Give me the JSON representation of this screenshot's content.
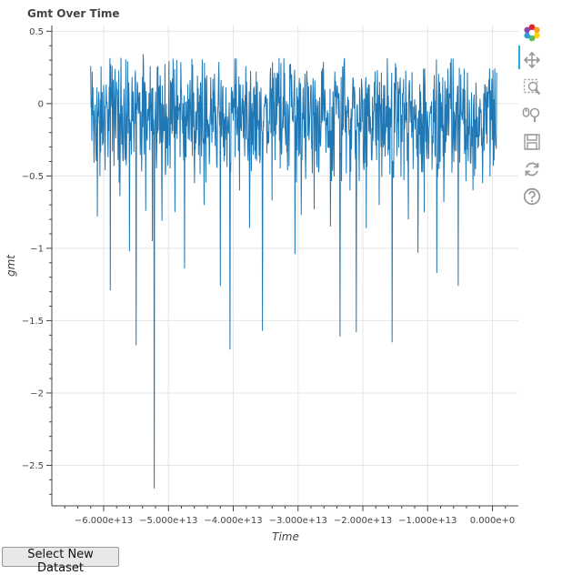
{
  "chart_data": {
    "type": "line",
    "title": "Gmt Over Time",
    "xlabel": "Time",
    "ylabel": "gmt",
    "xlim": [
      -68000000000000.0,
      4000000000000.0
    ],
    "ylim": [
      -2.78,
      0.54
    ],
    "x_ticks": [
      -60000000000000.0,
      -50000000000000.0,
      -40000000000000.0,
      -30000000000000.0,
      -20000000000000.0,
      -10000000000000.0,
      0
    ],
    "x_tick_labels": [
      "−6.000e+13",
      "−5.000e+13",
      "−4.000e+13",
      "−3.000e+13",
      "−2.000e+13",
      "−1.000e+13",
      "0.000e+0"
    ],
    "y_ticks": [
      0.5,
      0,
      -0.5,
      -1,
      -1.5,
      -2,
      -2.5
    ],
    "y_tick_labels": [
      "0.5",
      "0",
      "−0.5",
      "−1",
      "−1.5",
      "−2",
      "−2.5"
    ],
    "grid": true,
    "color": "#1f77b4",
    "series": [
      {
        "x_start": -62000000000000.0,
        "x_end": 650000000000.0,
        "baseline": -0.1,
        "spikes": [
          {
            "x": -61000000000000.0,
            "y": -0.78
          },
          {
            "x": -59000000000000.0,
            "y": -1.29
          },
          {
            "x": -57500000000000.0,
            "y": -0.64
          },
          {
            "x": -56000000000000.0,
            "y": -1.02
          },
          {
            "x": -55000000000000.0,
            "y": -1.67
          },
          {
            "x": -53500000000000.0,
            "y": -0.74
          },
          {
            "x": -52500000000000.0,
            "y": -0.95
          },
          {
            "x": -52200000000000.0,
            "y": -2.66
          },
          {
            "x": -51000000000000.0,
            "y": -0.81
          },
          {
            "x": -49000000000000.0,
            "y": -0.75
          },
          {
            "x": -47500000000000.0,
            "y": -1.14
          },
          {
            "x": -46000000000000.0,
            "y": -0.55
          },
          {
            "x": -44500000000000.0,
            "y": -0.7
          },
          {
            "x": -42000000000000.0,
            "y": -1.26
          },
          {
            "x": -40500000000000.0,
            "y": -1.7
          },
          {
            "x": -39000000000000.0,
            "y": -0.6
          },
          {
            "x": -37500000000000.0,
            "y": -0.86
          },
          {
            "x": -35500000000000.0,
            "y": -1.57
          },
          {
            "x": -34000000000000.0,
            "y": -0.67
          },
          {
            "x": -30500000000000.0,
            "y": -1.04
          },
          {
            "x": -29500000000000.0,
            "y": -0.77
          },
          {
            "x": -27500000000000.0,
            "y": -0.73
          },
          {
            "x": -25000000000000.0,
            "y": -0.85
          },
          {
            "x": -23500000000000.0,
            "y": -1.61
          },
          {
            "x": -22000000000000.0,
            "y": -0.6
          },
          {
            "x": -21000000000000.0,
            "y": -1.58
          },
          {
            "x": -19500000000000.0,
            "y": -0.86
          },
          {
            "x": -17500000000000.0,
            "y": -0.7
          },
          {
            "x": -15500000000000.0,
            "y": -1.65
          },
          {
            "x": -13000000000000.0,
            "y": -0.8
          },
          {
            "x": -11500000000000.0,
            "y": -1.03
          },
          {
            "x": -10500000000000.0,
            "y": -0.75
          },
          {
            "x": -8600000000000.0,
            "y": -1.17
          },
          {
            "x": -7500000000000.0,
            "y": -0.68
          },
          {
            "x": -5300000000000.0,
            "y": -1.26
          },
          {
            "x": -3000000000000.0,
            "y": -0.6
          },
          {
            "x": -1500000000000.0,
            "y": -0.55
          }
        ]
      }
    ]
  },
  "toolbar": {
    "items": [
      {
        "name": "bokeh-logo-icon"
      },
      {
        "name": "pan-icon",
        "active": true
      },
      {
        "name": "box-zoom-icon"
      },
      {
        "name": "wheel-zoom-icon"
      },
      {
        "name": "save-icon"
      },
      {
        "name": "reset-icon"
      },
      {
        "name": "help-icon"
      }
    ]
  },
  "controls": {
    "select_button_label": "Select New Dataset"
  }
}
